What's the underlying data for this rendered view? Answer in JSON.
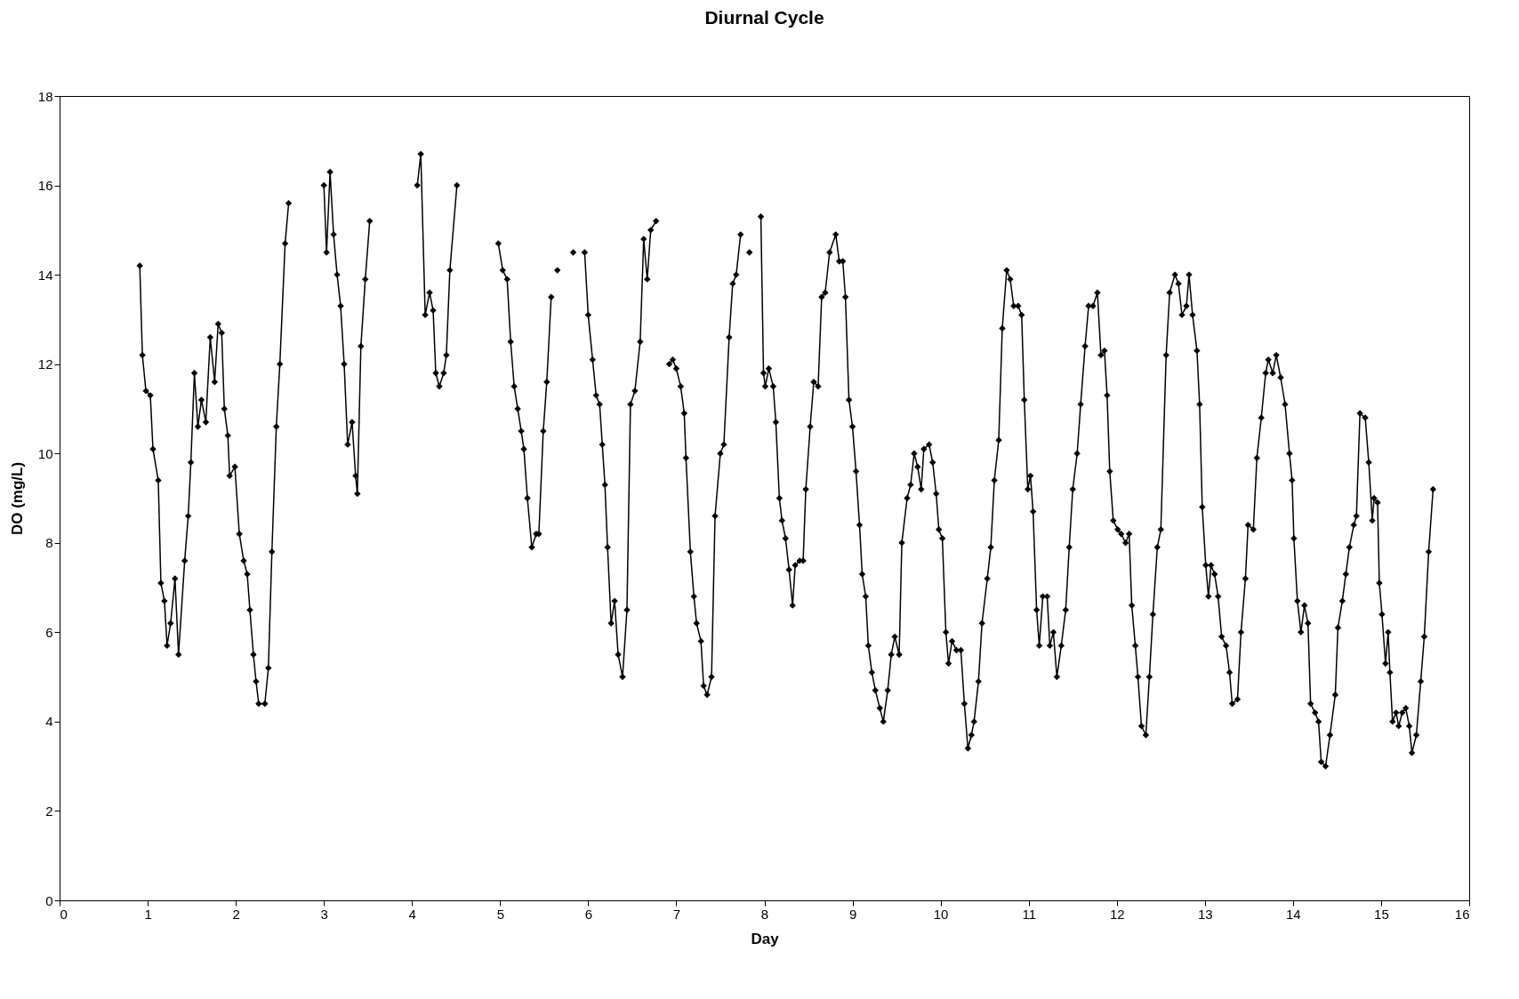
{
  "chart_data": {
    "type": "line",
    "title": "Diurnal Cycle",
    "xlabel": "Day",
    "ylabel": "DO (mg/L)",
    "xlim": [
      0,
      16
    ],
    "xticks": [
      0,
      1,
      2,
      3,
      4,
      5,
      6,
      7,
      8,
      9,
      10,
      11,
      12,
      13,
      14,
      15,
      16
    ],
    "ylim": [
      0,
      18
    ],
    "yticks": [
      0,
      2,
      4,
      6,
      8,
      10,
      12,
      14,
      16,
      18
    ],
    "grid": false,
    "marker": "diamond",
    "line_style": "solid",
    "series": [
      {
        "color": "#000000",
        "x": [
          0.91,
          0.94,
          0.98,
          1.03,
          1.06,
          1.12,
          1.15,
          1.19,
          1.22,
          1.26,
          1.31,
          1.35,
          1.42,
          1.46,
          1.49,
          1.53,
          1.57,
          1.61,
          1.66,
          1.71,
          1.76,
          1.8,
          1.84,
          1.87,
          1.91,
          1.93,
          1.99,
          2.04,
          2.09,
          2.13,
          2.16,
          2.2,
          2.23,
          2.26,
          2.33,
          2.37,
          2.41,
          2.46,
          2.5,
          2.56,
          2.6,
          2.8,
          3.0,
          3.03,
          3.07,
          3.11,
          3.15,
          3.19,
          3.23,
          3.27,
          3.32,
          3.36,
          3.38,
          3.42,
          3.47,
          3.52,
          3.8,
          4.06,
          4.1,
          4.15,
          4.2,
          4.24,
          4.27,
          4.31,
          4.36,
          4.39,
          4.43,
          4.51,
          4.75,
          4.98,
          5.03,
          5.08,
          5.12,
          5.16,
          5.2,
          5.24,
          5.27,
          5.31,
          5.36,
          5.41,
          5.44,
          5.49,
          5.53,
          5.58,
          5.62,
          5.65,
          5.75,
          5.83,
          5.9,
          5.96,
          6.0,
          6.05,
          6.09,
          6.13,
          6.16,
          6.19,
          6.22,
          6.26,
          6.3,
          6.34,
          6.39,
          6.44,
          6.48,
          6.53,
          6.59,
          6.63,
          6.67,
          6.71,
          6.77,
          6.85,
          6.92,
          6.96,
          7.0,
          7.05,
          7.09,
          7.11,
          7.16,
          7.2,
          7.23,
          7.28,
          7.31,
          7.35,
          7.4,
          7.44,
          7.5,
          7.54,
          7.6,
          7.64,
          7.68,
          7.73,
          7.78,
          7.83,
          7.9,
          7.96,
          7.99,
          8.01,
          8.05,
          8.1,
          8.13,
          8.17,
          8.2,
          8.24,
          8.28,
          8.32,
          8.35,
          8.4,
          8.44,
          8.47,
          8.52,
          8.56,
          8.61,
          8.65,
          8.69,
          8.74,
          8.81,
          8.85,
          8.89,
          8.92,
          8.96,
          9.0,
          9.04,
          9.08,
          9.11,
          9.15,
          9.18,
          9.22,
          9.26,
          9.31,
          9.35,
          9.4,
          9.44,
          9.48,
          9.53,
          9.56,
          9.62,
          9.66,
          9.7,
          9.74,
          9.78,
          9.81,
          9.87,
          9.91,
          9.95,
          9.98,
          10.02,
          10.06,
          10.09,
          10.13,
          10.18,
          10.23,
          10.27,
          10.31,
          10.35,
          10.38,
          10.43,
          10.47,
          10.53,
          10.57,
          10.61,
          10.66,
          10.7,
          10.75,
          10.79,
          10.83,
          10.88,
          10.92,
          10.95,
          10.99,
          11.02,
          11.05,
          11.09,
          11.12,
          11.16,
          11.21,
          11.24,
          11.28,
          11.32,
          11.37,
          11.42,
          11.46,
          11.5,
          11.55,
          11.59,
          11.64,
          11.68,
          11.73,
          11.78,
          11.82,
          11.86,
          11.89,
          11.92,
          11.96,
          12.01,
          12.05,
          12.1,
          12.14,
          12.17,
          12.21,
          12.24,
          12.28,
          12.33,
          12.37,
          12.41,
          12.46,
          12.5,
          12.56,
          12.6,
          12.66,
          12.7,
          12.74,
          12.79,
          12.82,
          12.86,
          12.91,
          12.94,
          12.97,
          13.01,
          13.04,
          13.07,
          13.11,
          13.15,
          13.19,
          13.24,
          13.28,
          13.31,
          13.37,
          13.41,
          13.46,
          13.49,
          13.55,
          13.59,
          13.64,
          13.69,
          13.72,
          13.77,
          13.81,
          13.86,
          13.91,
          13.96,
          13.99,
          14.01,
          14.05,
          14.09,
          14.13,
          14.17,
          14.2,
          14.25,
          14.29,
          14.32,
          14.37,
          14.42,
          14.48,
          14.51,
          14.56,
          14.6,
          14.64,
          14.69,
          14.72,
          14.76,
          14.82,
          14.86,
          14.9,
          14.92,
          14.96,
          14.98,
          15.01,
          15.05,
          15.08,
          15.1,
          15.13,
          15.17,
          15.2,
          15.24,
          15.28,
          15.32,
          15.35,
          15.4,
          15.45,
          15.49,
          15.54,
          15.59
        ],
        "values": [
          14.2,
          12.2,
          11.4,
          11.3,
          10.1,
          9.4,
          7.1,
          6.7,
          5.7,
          6.2,
          7.2,
          5.5,
          7.6,
          8.6,
          9.8,
          11.8,
          10.6,
          11.2,
          10.7,
          12.6,
          11.6,
          12.9,
          12.7,
          11.0,
          10.4,
          9.5,
          9.7,
          8.2,
          7.6,
          7.3,
          6.5,
          5.5,
          4.9,
          4.4,
          4.4,
          5.2,
          7.8,
          10.6,
          12.0,
          14.7,
          15.6,
          null,
          16.0,
          14.5,
          16.3,
          14.9,
          14.0,
          13.3,
          12.0,
          10.2,
          10.7,
          9.5,
          9.1,
          12.4,
          13.9,
          15.2,
          null,
          16.0,
          16.7,
          13.1,
          13.6,
          13.2,
          11.8,
          11.5,
          11.8,
          12.2,
          14.1,
          16.0,
          null,
          14.7,
          14.1,
          13.9,
          12.5,
          11.5,
          11.0,
          10.5,
          10.1,
          9.0,
          7.9,
          8.2,
          8.2,
          10.5,
          11.6,
          13.5,
          null,
          14.1,
          null,
          14.5,
          null,
          14.5,
          13.1,
          12.1,
          11.3,
          11.1,
          10.2,
          9.3,
          7.9,
          6.2,
          6.7,
          5.5,
          5.0,
          6.5,
          11.1,
          11.4,
          12.5,
          14.8,
          13.9,
          15.0,
          15.2,
          null,
          12.0,
          12.1,
          11.9,
          11.5,
          10.9,
          9.9,
          7.8,
          6.8,
          6.2,
          5.8,
          4.8,
          4.6,
          5.0,
          8.6,
          10.0,
          10.2,
          12.6,
          13.8,
          14.0,
          14.9,
          null,
          14.5,
          null,
          15.3,
          11.8,
          11.5,
          11.9,
          11.5,
          10.7,
          9.0,
          8.5,
          8.1,
          7.4,
          6.6,
          7.5,
          7.6,
          7.6,
          9.2,
          10.6,
          11.6,
          11.5,
          13.5,
          13.6,
          14.5,
          14.9,
          14.3,
          14.3,
          13.5,
          11.2,
          10.6,
          9.6,
          8.4,
          7.3,
          6.8,
          5.7,
          5.1,
          4.7,
          4.3,
          4.0,
          4.7,
          5.5,
          5.9,
          5.5,
          8.0,
          9.0,
          9.3,
          10.0,
          9.7,
          9.2,
          10.1,
          10.2,
          9.8,
          9.1,
          8.3,
          8.1,
          6.0,
          5.3,
          5.8,
          5.6,
          5.6,
          4.4,
          3.4,
          3.7,
          4.0,
          4.9,
          6.2,
          7.2,
          7.9,
          9.4,
          10.3,
          12.8,
          14.1,
          13.9,
          13.3,
          13.3,
          13.1,
          11.2,
          9.2,
          9.5,
          8.7,
          6.5,
          5.7,
          6.8,
          6.8,
          5.7,
          6.0,
          5.0,
          5.7,
          6.5,
          7.9,
          9.2,
          10.0,
          11.1,
          12.4,
          13.3,
          13.3,
          13.6,
          12.2,
          12.3,
          11.3,
          9.6,
          8.5,
          8.3,
          8.2,
          8.0,
          8.2,
          6.6,
          5.7,
          5.0,
          3.9,
          3.7,
          5.0,
          6.4,
          7.9,
          8.3,
          12.2,
          13.6,
          14.0,
          13.8,
          13.1,
          13.3,
          14.0,
          13.1,
          12.3,
          11.1,
          8.8,
          7.5,
          6.8,
          7.5,
          7.3,
          6.8,
          5.9,
          5.7,
          5.1,
          4.4,
          4.5,
          6.0,
          7.2,
          8.4,
          8.3,
          9.9,
          10.8,
          11.8,
          12.1,
          11.8,
          12.2,
          11.7,
          11.1,
          10.0,
          9.4,
          8.1,
          6.7,
          6.0,
          6.6,
          6.2,
          4.4,
          4.2,
          4.0,
          3.1,
          3.0,
          3.7,
          4.6,
          6.1,
          6.7,
          7.3,
          7.9,
          8.4,
          8.6,
          10.9,
          10.8,
          9.8,
          8.5,
          9.0,
          8.9,
          7.1,
          6.4,
          5.3,
          6.0,
          5.1,
          4.0,
          4.2,
          3.9,
          4.2,
          4.3,
          3.9,
          3.3,
          3.7,
          4.9,
          5.9,
          7.8,
          9.2
        ]
      }
    ]
  }
}
